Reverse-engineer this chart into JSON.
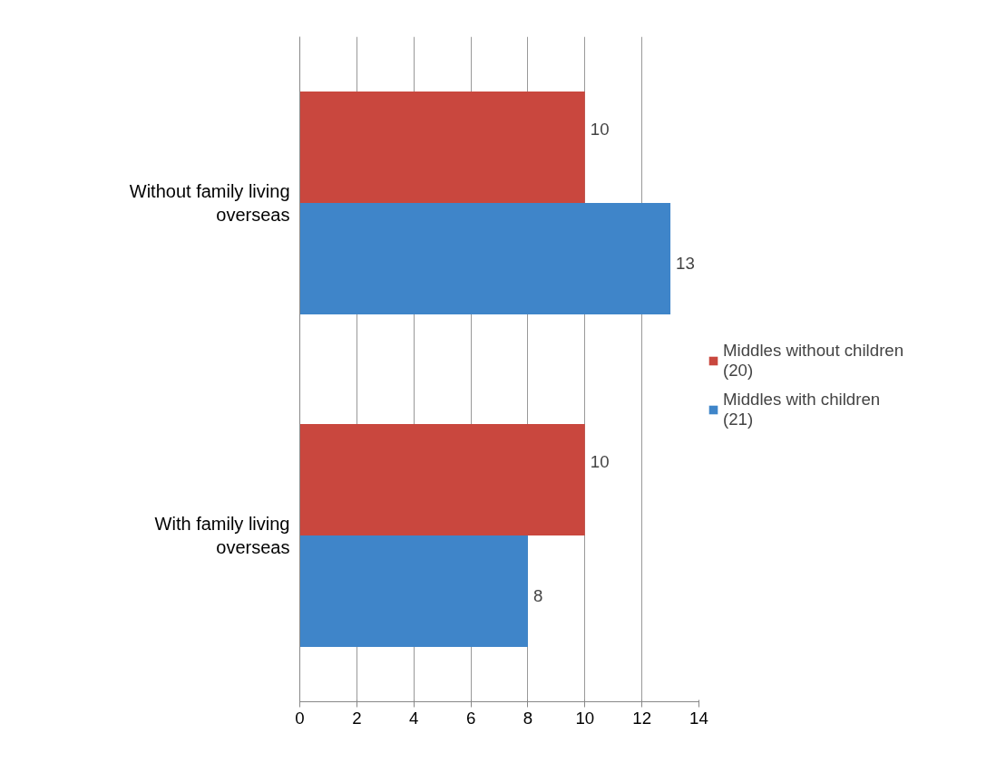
{
  "chart_data": {
    "type": "bar",
    "orientation": "horizontal",
    "categories": [
      "Without family living overseas",
      "With family living overseas"
    ],
    "series": [
      {
        "name": "Middles without children (20)",
        "color": "#c9473e",
        "values": [
          10,
          10
        ]
      },
      {
        "name": "Middles with children (21)",
        "color": "#3f85c9",
        "values": [
          13,
          8
        ]
      }
    ],
    "xlim": [
      0,
      14
    ],
    "xticks": [
      0,
      2,
      4,
      6,
      8,
      10,
      12,
      14
    ],
    "grid": "x",
    "legend": "right",
    "data_labels": true
  }
}
